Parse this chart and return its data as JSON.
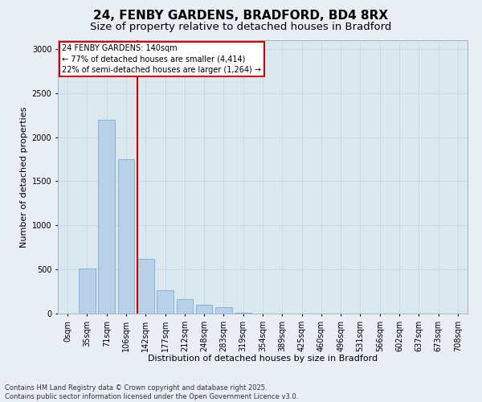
{
  "title1": "24, FENBY GARDENS, BRADFORD, BD4 8RX",
  "title2": "Size of property relative to detached houses in Bradford",
  "xlabel": "Distribution of detached houses by size in Bradford",
  "ylabel": "Number of detached properties",
  "footnote1": "Contains HM Land Registry data © Crown copyright and database right 2025.",
  "footnote2": "Contains public sector information licensed under the Open Government Licence v3.0.",
  "categories": [
    "0sqm",
    "35sqm",
    "71sqm",
    "106sqm",
    "142sqm",
    "177sqm",
    "212sqm",
    "248sqm",
    "283sqm",
    "319sqm",
    "354sqm",
    "389sqm",
    "425sqm",
    "460sqm",
    "496sqm",
    "531sqm",
    "566sqm",
    "602sqm",
    "637sqm",
    "673sqm",
    "708sqm"
  ],
  "bar_values": [
    0,
    510,
    2200,
    1750,
    620,
    260,
    160,
    100,
    70,
    10,
    0,
    0,
    0,
    0,
    0,
    0,
    0,
    0,
    0,
    0,
    0
  ],
  "bar_color": "#b8d0e8",
  "bar_edge_color": "#7aafd4",
  "annotation_text": "24 FENBY GARDENS: 140sqm\n← 77% of detached houses are smaller (4,414)\n22% of semi-detached houses are larger (1,264) →",
  "annotation_box_color": "#cc0000",
  "vline_color": "#cc0000",
  "vline_x": 3.57,
  "ylim": [
    0,
    3100
  ],
  "yticks": [
    0,
    500,
    1000,
    1500,
    2000,
    2500,
    3000
  ],
  "grid_color": "#c8d8e8",
  "bg_color": "#dce8f0",
  "fig_bg_color": "#e8eef4",
  "title_fontsize": 11,
  "subtitle_fontsize": 9.5,
  "axis_label_fontsize": 8,
  "tick_fontsize": 7,
  "annotation_fontsize": 7,
  "footnote_fontsize": 6
}
